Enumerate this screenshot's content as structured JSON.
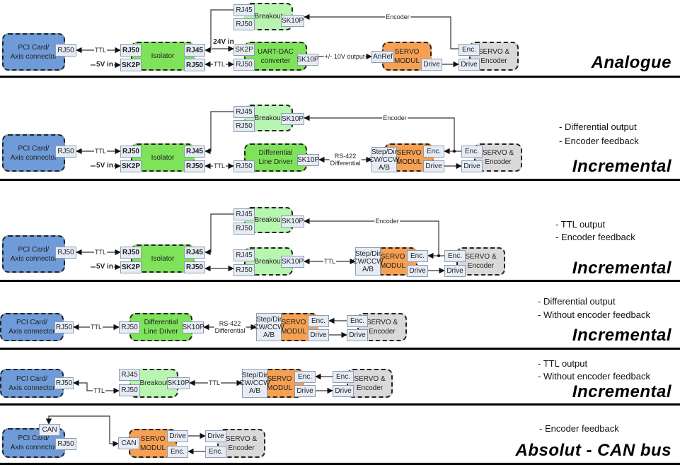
{
  "colors": {
    "pci": "#6f9bd8",
    "active_green": "#7ee35a",
    "breakout_green": "#b8f5b0",
    "servo_orange": "#f5a052",
    "servo_gray": "#d9d9d9",
    "port": "#e6ecf5"
  },
  "sections": [
    {
      "title": "Analogue",
      "notes": [],
      "blocks": [
        "PCI Card/\nAxis connector",
        "Isolator",
        "Breakout",
        "UART-DAC\nconverter",
        "SERVO\nMODUL",
        "SERVO &\nEncoder"
      ],
      "ports": [
        "RJ50",
        "RJ50",
        "SK2P",
        "RJ45",
        "RJ50",
        "RJ45",
        "RJ50",
        "SK10P",
        "SK2P",
        "RJ50",
        "SK10P",
        "AnRef",
        "Drive",
        "Enc.",
        "Drive"
      ],
      "labels": [
        "TTL",
        "5V in",
        "24V in",
        "TTL",
        "+/- 10V output",
        "Encoder"
      ]
    },
    {
      "title": "Incremental",
      "notes": [
        "- Differential output",
        "- Encoder feedback"
      ],
      "blocks": [
        "PCI Card/\nAxis connector",
        "Isolator",
        "Breakout",
        "Differential\nLine Driver",
        "SERVO\nMODUL",
        "SERVO &\nEncoder"
      ],
      "ports": [
        "RJ50",
        "RJ50",
        "SK2P",
        "RJ45",
        "RJ50",
        "RJ45",
        "RJ50",
        "SK10P",
        "RJ50",
        "SK10P",
        "Step/Dir\nCW/CCW\nA/B",
        "Enc.",
        "Drive",
        "Enc.",
        "Drive"
      ],
      "labels": [
        "TTL",
        "5V in",
        "TTL",
        "RS-422\nDifferential",
        "Encoder"
      ]
    },
    {
      "title": "Incremental",
      "notes": [
        "- TTL output",
        "- Encoder feedback"
      ],
      "blocks": [
        "PCI Card/\nAxis connector",
        "Isolator",
        "Breakout",
        "Breakout",
        "SERVO\nMODUL",
        "SERVO &\nEncoder"
      ],
      "ports": [
        "RJ50",
        "RJ50",
        "SK2P",
        "RJ45",
        "RJ50",
        "RJ45",
        "RJ50",
        "SK10P",
        "RJ45",
        "RJ50",
        "SK10P",
        "Step/Dir\nCW/CCW\nA/B",
        "Enc.",
        "Drive",
        "Enc.",
        "Drive"
      ],
      "labels": [
        "TTL",
        "5V in",
        "TTL",
        "Encoder"
      ]
    },
    {
      "title": "Incremental",
      "notes": [
        "- Differential output",
        "- Without encoder feedback"
      ],
      "blocks": [
        "PCI Card/\nAxis connector",
        "Differential\nLine Driver",
        "SERVO\nMODUL",
        "SERVO &\nEncoder"
      ],
      "ports": [
        "RJ50",
        "RJ50",
        "SK10P",
        "Step/Dir\nCW/CCW\nA/B",
        "Enc.",
        "Drive",
        "Enc.",
        "Drive"
      ],
      "labels": [
        "TTL",
        "RS-422\nDifferential"
      ]
    },
    {
      "title": "Incremental",
      "notes": [
        "- TTL output",
        "- Without encoder feedback"
      ],
      "blocks": [
        "PCI Card/\nAxis connector",
        "Breakout",
        "SERVO\nMODUL",
        "SERVO &\nEncoder"
      ],
      "ports": [
        "RJ50",
        "RJ45",
        "RJ50",
        "SK10P",
        "Step/Dir\nCW/CCW\nA/B",
        "Enc.",
        "Drive",
        "Enc.",
        "Drive"
      ],
      "labels": [
        "TTL",
        "TTL"
      ]
    },
    {
      "title": "Absolut - CAN bus",
      "notes": [
        "- Encoder feedback"
      ],
      "blocks": [
        "PCI Card/\nAxis connector",
        "SERVO\nMODUL",
        "SERVO &\nEncoder"
      ],
      "ports": [
        "CAN",
        "RJ50",
        "CAN",
        "Drive",
        "Enc.",
        "Drive",
        "Enc."
      ],
      "labels": []
    }
  ]
}
